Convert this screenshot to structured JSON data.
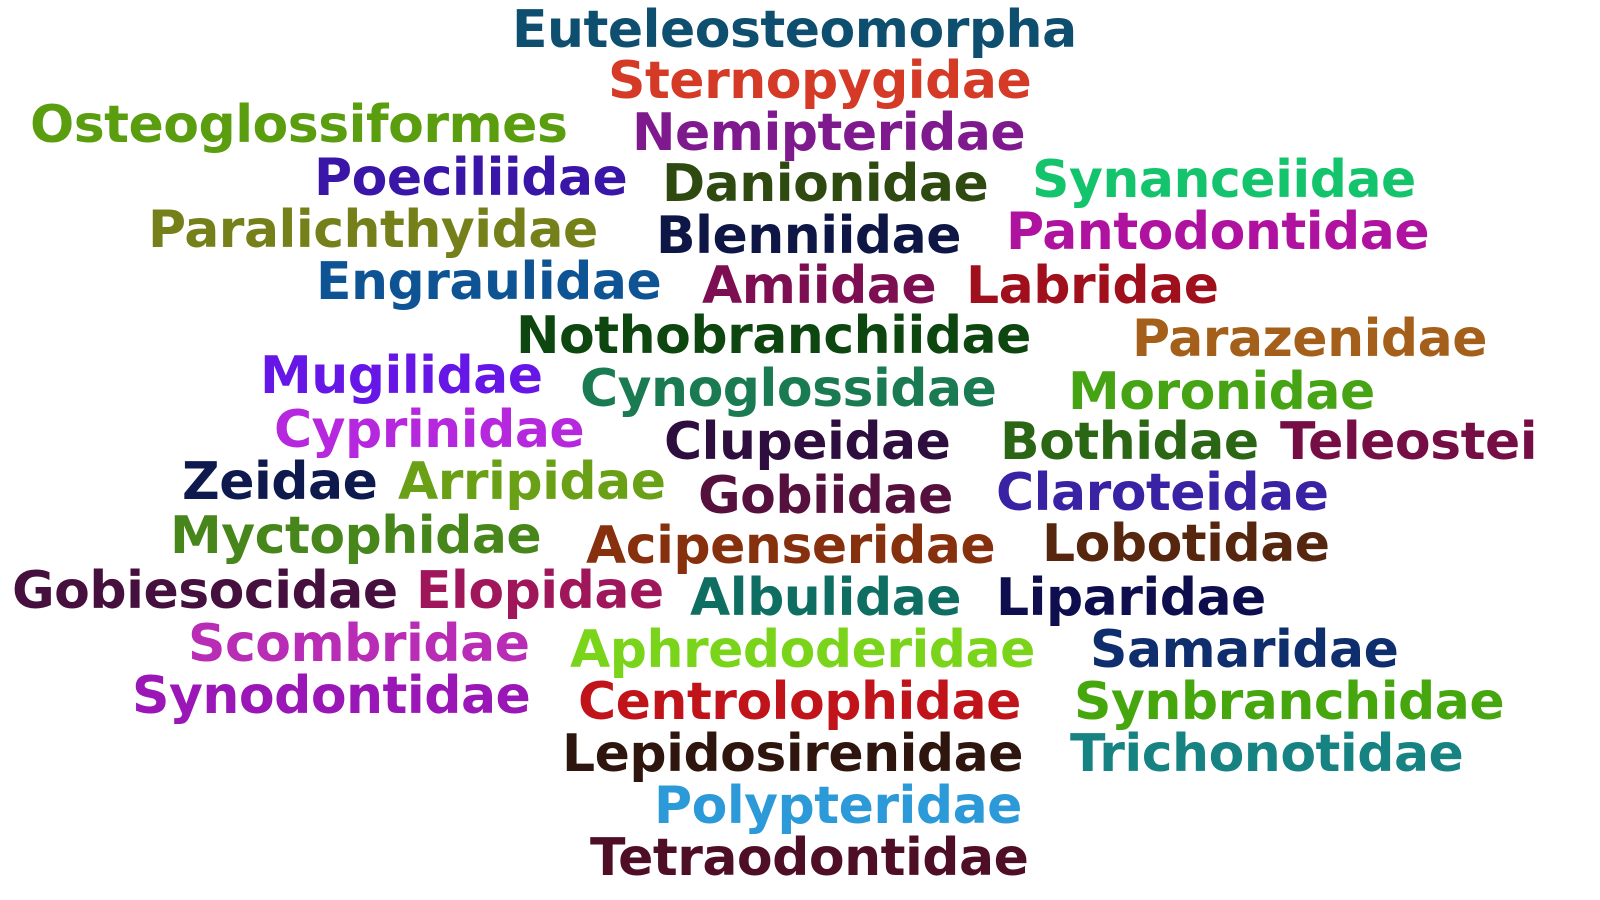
{
  "words": [
    {
      "text": "Euteleosteomorpha",
      "color": "#0e4e6e"
    },
    {
      "text": "Sternopygidae",
      "color": "#d43a26"
    },
    {
      "text": "Osteoglossiformes",
      "color": "#5a9e10"
    },
    {
      "text": "Nemipteridae",
      "color": "#7e1a8e"
    },
    {
      "text": "Poeciliidae",
      "color": "#3a16a8"
    },
    {
      "text": "Danionidae",
      "color": "#2e4a10"
    },
    {
      "text": "Synanceiidae",
      "color": "#14c46c"
    },
    {
      "text": "Paralichthyidae",
      "color": "#76801a"
    },
    {
      "text": "Blenniidae",
      "color": "#0e1646"
    },
    {
      "text": "Pantodontidae",
      "color": "#b012a0"
    },
    {
      "text": "Engraulidae",
      "color": "#0e5494"
    },
    {
      "text": "Amiidae",
      "color": "#7e0e52"
    },
    {
      "text": "Labridae",
      "color": "#a0101c"
    },
    {
      "text": "Nothobranchiidae",
      "color": "#0e4610"
    },
    {
      "text": "Parazenidae",
      "color": "#a4601a"
    },
    {
      "text": "Mugilidae",
      "color": "#6616e6"
    },
    {
      "text": "Cynoglossidae",
      "color": "#1a7a52"
    },
    {
      "text": "Moronidae",
      "color": "#46a414"
    },
    {
      "text": "Cyprinidae",
      "color": "#b628de"
    },
    {
      "text": "Clupeidae",
      "color": "#2e0e3e"
    },
    {
      "text": "Bothidae",
      "color": "#2a6614"
    },
    {
      "text": "Teleostei",
      "color": "#760e46"
    },
    {
      "text": "Zeidae",
      "color": "#0e1a4e"
    },
    {
      "text": "Arripidae",
      "color": "#6aa016"
    },
    {
      "text": "Gobiidae",
      "color": "#56103e"
    },
    {
      "text": "Claroteidae",
      "color": "#3a22a4"
    },
    {
      "text": "Myctophidae",
      "color": "#46861a"
    },
    {
      "text": "Acipenseridae",
      "color": "#86300e"
    },
    {
      "text": "Lobotidae",
      "color": "#56260e"
    },
    {
      "text": "Gobiesocidae",
      "color": "#46103e"
    },
    {
      "text": "Elopidae",
      "color": "#a0165a"
    },
    {
      "text": "Albulidae",
      "color": "#0e6e62"
    },
    {
      "text": "Liparidae",
      "color": "#0e0e4e"
    },
    {
      "text": "Scombridae",
      "color": "#b82cb6"
    },
    {
      "text": "Aphredoderidae",
      "color": "#7ad41a"
    },
    {
      "text": "Samaridae",
      "color": "#0e2e6e"
    },
    {
      "text": "Synodontidae",
      "color": "#9a16b6"
    },
    {
      "text": "Centrolophidae",
      "color": "#c0141a"
    },
    {
      "text": "Synbranchidae",
      "color": "#46a60e"
    },
    {
      "text": "Lepidosirenidae",
      "color": "#2e160e"
    },
    {
      "text": "Trichonotidae",
      "color": "#168282"
    },
    {
      "text": "Polypteridae",
      "color": "#2c9ad8"
    },
    {
      "text": "Tetraodontidae",
      "color": "#4e0e26"
    }
  ]
}
